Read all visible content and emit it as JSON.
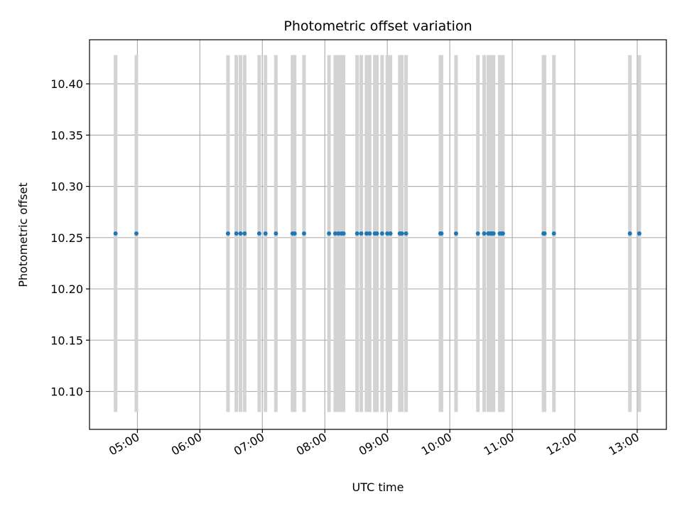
{
  "chart_data": {
    "type": "scatter",
    "title": "Photometric offset variation",
    "xlabel": "UTC time",
    "ylabel": "Photometric offset",
    "x_tick_labels": [
      "05:00",
      "06:00",
      "07:00",
      "08:00",
      "09:00",
      "10:00",
      "11:00",
      "12:00",
      "13:00"
    ],
    "x_ticks": [
      "05:00",
      "06:00",
      "07:00",
      "08:00",
      "09:00",
      "10:00",
      "11:00",
      "12:00",
      "13:00"
    ],
    "y_ticks": [
      10.1,
      10.15,
      10.2,
      10.25,
      10.3,
      10.35,
      10.4
    ],
    "y_tick_labels": [
      "10.10",
      "10.15",
      "10.20",
      "10.25",
      "10.30",
      "10.35",
      "10.40"
    ],
    "xlim": [
      "04:14",
      "13:28"
    ],
    "ylim": [
      10.063,
      10.443
    ],
    "grid": true,
    "colors": {
      "points": "#1f77b4",
      "error_bars": "#d3d3d3",
      "grid": "#b0b0b0"
    },
    "error_bar_range": [
      10.08,
      10.428
    ],
    "series": [
      {
        "x": [
          "04:39",
          "04:59",
          "06:27",
          "06:35",
          "06:39",
          "06:43",
          "06:57",
          "07:03",
          "07:13",
          "07:29",
          "07:31",
          "07:40",
          "08:04",
          "08:10",
          "08:13",
          "08:16",
          "08:18",
          "08:31",
          "08:35",
          "08:40",
          "08:43",
          "08:48",
          "08:50",
          "08:55",
          "09:00",
          "09:03",
          "09:12",
          "09:14",
          "09:18",
          "09:51",
          "09:52",
          "10:06",
          "10:27",
          "10:33",
          "10:37",
          "10:39",
          "10:40",
          "10:41",
          "10:42",
          "10:48",
          "10:50",
          "10:51",
          "11:30",
          "11:31",
          "11:40",
          "12:53",
          "13:02"
        ],
        "y": [
          10.254,
          10.254,
          10.254,
          10.254,
          10.254,
          10.254,
          10.254,
          10.254,
          10.254,
          10.254,
          10.254,
          10.254,
          10.254,
          10.254,
          10.254,
          10.254,
          10.254,
          10.254,
          10.254,
          10.254,
          10.254,
          10.254,
          10.254,
          10.254,
          10.254,
          10.254,
          10.254,
          10.254,
          10.254,
          10.254,
          10.254,
          10.254,
          10.254,
          10.254,
          10.254,
          10.254,
          10.254,
          10.254,
          10.254,
          10.254,
          10.254,
          10.254,
          10.254,
          10.254,
          10.254,
          10.254,
          10.254
        ]
      }
    ]
  }
}
